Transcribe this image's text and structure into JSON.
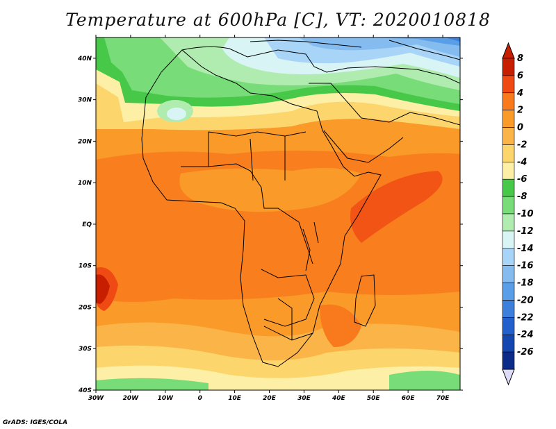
{
  "title": "Temperature at 600hPa [C], VT: 2020010818",
  "credit": "GrADS: IGES/COLA",
  "map": {
    "lon_range": [
      -30,
      75
    ],
    "lat_range": [
      -40,
      45
    ],
    "lon_ticks": [
      {
        "value": -30,
        "label": "30W"
      },
      {
        "value": -20,
        "label": "20W"
      },
      {
        "value": -10,
        "label": "10W"
      },
      {
        "value": 0,
        "label": "0"
      },
      {
        "value": 10,
        "label": "10E"
      },
      {
        "value": 20,
        "label": "20E"
      },
      {
        "value": 30,
        "label": "30E"
      },
      {
        "value": 40,
        "label": "40E"
      },
      {
        "value": 50,
        "label": "50E"
      },
      {
        "value": 60,
        "label": "60E"
      },
      {
        "value": 70,
        "label": "70E"
      }
    ],
    "lat_ticks": [
      {
        "value": 40,
        "label": "40N"
      },
      {
        "value": 30,
        "label": "30N"
      },
      {
        "value": 20,
        "label": "20N"
      },
      {
        "value": 10,
        "label": "10N"
      },
      {
        "value": 0,
        "label": "EQ"
      },
      {
        "value": -10,
        "label": "10S"
      },
      {
        "value": -20,
        "label": "20S"
      },
      {
        "value": -30,
        "label": "30S"
      },
      {
        "value": -40,
        "label": "40S"
      }
    ]
  },
  "colorbar": {
    "labels": [
      "8",
      "6",
      "4",
      "2",
      "0",
      "-2",
      "-4",
      "-6",
      "-8",
      "-10",
      "-12",
      "-14",
      "-16",
      "-18",
      "-20",
      "-22",
      "-24",
      "-26"
    ],
    "colors": [
      "#c81e00",
      "#f04a14",
      "#f87a1c",
      "#fa9a28",
      "#fbb448",
      "#fcd66c",
      "#fdf0a6",
      "#48c848",
      "#78dc78",
      "#b0ecb0",
      "#d8f4f4",
      "#a8d4f8",
      "#84bcf0",
      "#5a9ee8",
      "#3c80dc",
      "#2460cc",
      "#1446b0",
      "#0c2a88"
    ],
    "over_color": "#c81e00",
    "under_color": "#dcdcf8"
  }
}
